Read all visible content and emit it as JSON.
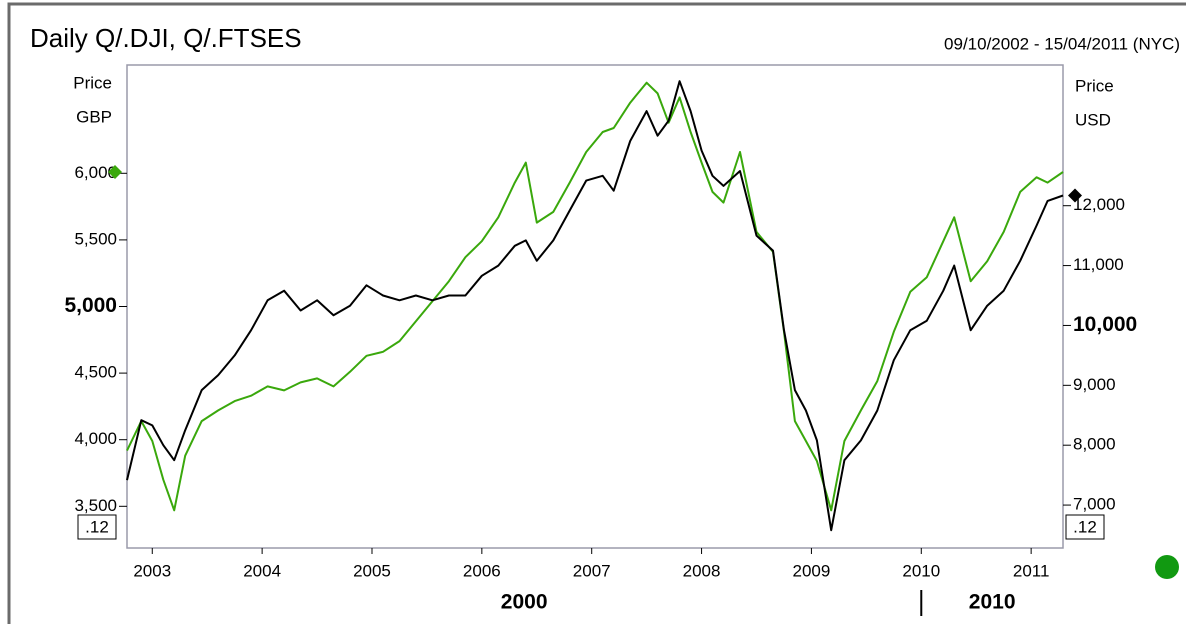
{
  "chart_data": {
    "type": "line",
    "title": "Daily Q/.DJI, Q/.FTSES",
    "subtitle": "09/10/2002 - 15/04/2011 (NYC)",
    "ylabel": "Price",
    "yunit": "GBP",
    "y2label": "Price",
    "y2unit": "USD",
    "corner_labels": [
      ".12",
      ".12"
    ],
    "decade_labels": [
      2000,
      2010
    ],
    "x": [
      2002.77,
      2002.9,
      2003.0,
      2003.1,
      2003.2,
      2003.3,
      2003.45,
      2003.6,
      2003.75,
      2003.9,
      2004.05,
      2004.2,
      2004.35,
      2004.5,
      2004.65,
      2004.8,
      2004.95,
      2005.1,
      2005.25,
      2005.4,
      2005.55,
      2005.7,
      2005.85,
      2006.0,
      2006.15,
      2006.3,
      2006.4,
      2006.5,
      2006.65,
      2006.8,
      2006.95,
      2007.1,
      2007.2,
      2007.35,
      2007.5,
      2007.6,
      2007.7,
      2007.8,
      2007.9,
      2008.0,
      2008.1,
      2008.2,
      2008.35,
      2008.5,
      2008.65,
      2008.75,
      2008.85,
      2008.95,
      2009.05,
      2009.18,
      2009.3,
      2009.45,
      2009.6,
      2009.75,
      2009.9,
      2010.05,
      2010.2,
      2010.3,
      2010.45,
      2010.6,
      2010.75,
      2010.9,
      2011.05,
      2011.15,
      2011.29
    ],
    "series": [
      {
        "name": "Q/.FTSES",
        "color": "#3aa80c",
        "axis": "y",
        "values": [
          3918,
          4140,
          3990,
          3700,
          3470,
          3880,
          4140,
          4220,
          4290,
          4330,
          4400,
          4370,
          4430,
          4460,
          4400,
          4510,
          4630,
          4660,
          4740,
          4890,
          5040,
          5190,
          5370,
          5490,
          5670,
          5930,
          6080,
          5630,
          5710,
          5930,
          6160,
          6310,
          6340,
          6530,
          6680,
          6600,
          6380,
          6570,
          6310,
          6080,
          5860,
          5780,
          6160,
          5560,
          5410,
          4810,
          4140,
          3990,
          3840,
          3470,
          3990,
          4220,
          4440,
          4810,
          5110,
          5220,
          5490,
          5670,
          5190,
          5340,
          5560,
          5860,
          5970,
          5930,
          6010
        ]
      },
      {
        "name": "Q/.DJI",
        "color": "#000000",
        "axis": "y2",
        "values": [
          7417,
          8417,
          8330,
          8000,
          7750,
          8250,
          8920,
          9170,
          9500,
          9920,
          10420,
          10580,
          10250,
          10420,
          10170,
          10330,
          10670,
          10500,
          10420,
          10500,
          10420,
          10500,
          10500,
          10830,
          11000,
          11330,
          11420,
          11080,
          11420,
          11920,
          12420,
          12500,
          12250,
          13080,
          13580,
          13170,
          13420,
          14080,
          13580,
          12920,
          12500,
          12330,
          12580,
          11500,
          11250,
          9920,
          8920,
          8580,
          8080,
          6580,
          7750,
          8080,
          8580,
          9420,
          9920,
          10080,
          10580,
          11000,
          9920,
          10330,
          10580,
          11080,
          11670,
          12080,
          12170
        ]
      }
    ],
    "xlim": [
      2002.77,
      2011.29
    ],
    "xticks": [
      2003,
      2004,
      2005,
      2006,
      2007,
      2008,
      2009,
      2010,
      2011
    ],
    "ylim": [
      3187,
      6813
    ],
    "yticks": [
      {
        "value": 3500,
        "label": "3,500"
      },
      {
        "value": 4000,
        "label": "4,000"
      },
      {
        "value": 4500,
        "label": "4,500"
      },
      {
        "value": 5000,
        "label": "5,000"
      },
      {
        "value": 5500,
        "label": "5,500"
      },
      {
        "value": 6000,
        "label": "6,000"
      }
    ],
    "y2lim": [
      6283,
      14350
    ],
    "y2ticks": [
      {
        "value": 7000,
        "label": "7,000"
      },
      {
        "value": 8000,
        "label": "8,000"
      },
      {
        "value": 9000,
        "label": "9,000"
      },
      {
        "value": 10000,
        "label": "10,000"
      },
      {
        "value": 11000,
        "label": "11,000"
      },
      {
        "value": 12000,
        "label": "12,000"
      }
    ],
    "grid": false
  }
}
